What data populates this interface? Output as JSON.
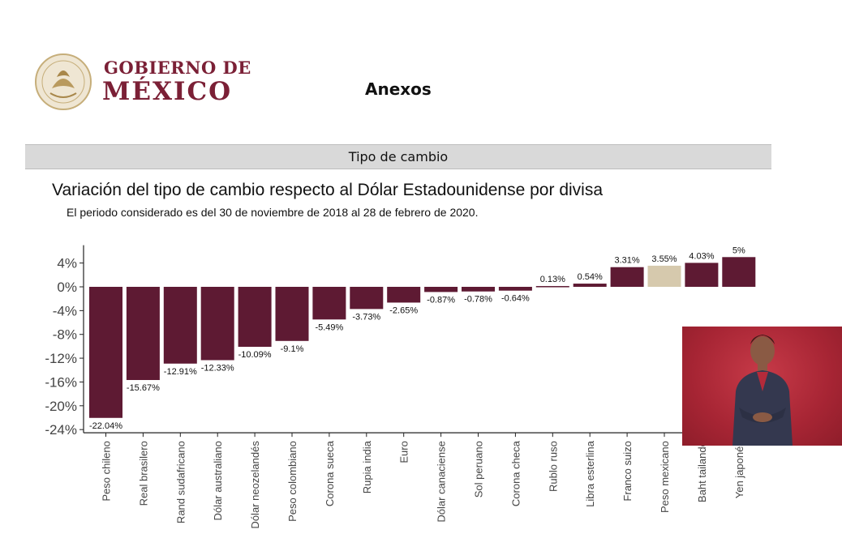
{
  "header": {
    "gov_line1": "GOBIERNO DE",
    "gov_line2": "MÉXICO",
    "page_heading": "Anexos"
  },
  "section": {
    "title": "Tipo de cambio"
  },
  "colors": {
    "bar": "#5e1a33",
    "highlight": "#d6c9ad",
    "brand": "#7b2036",
    "interpreter_bg": "#a72534"
  },
  "chart_data": {
    "type": "bar",
    "title": "Variación del tipo de cambio respecto al Dólar Estadounidense por divisa",
    "subtitle": "El periodo considerado es del 30 de noviembre de 2018 al 28 de febrero de 2020.",
    "categories": [
      "Peso chileno",
      "Real brasilero",
      "Rand sudafricano",
      "Dólar australiano",
      "Dólar neozelandés",
      "Peso colombiano",
      "Corona sueca",
      "Rupia india",
      "Euro",
      "Dólar canaciense",
      "Sol peruano",
      "Corona checa",
      "Rublo ruso",
      "Libra esterlina",
      "Franco suizo",
      "Peso mexicano",
      "Baht tailandé",
      "Yen japonés"
    ],
    "values": [
      -22.04,
      -15.67,
      -12.91,
      -12.33,
      -10.09,
      -9.1,
      -5.49,
      -3.73,
      -2.65,
      -0.87,
      -0.78,
      -0.64,
      0.13,
      0.54,
      3.31,
      3.55,
      4.03,
      5
    ],
    "data_labels": [
      "-22.04%",
      "-15.67%",
      "-12.91%",
      "-12.33%",
      "-10.09%",
      "-9.1%",
      "-5.49%",
      "-3.73%",
      "-2.65%",
      "-0.87%",
      "-0.78%",
      "-0.64%",
      "0.13%",
      "0.54%",
      "3.31%",
      "3.55%",
      "4.03%",
      "5%"
    ],
    "highlight_category": "Peso mexicano",
    "yticks": [
      "4%",
      "0%",
      "-4%",
      "-8%",
      "-12%",
      "-16%",
      "-20%",
      "-24%"
    ],
    "ytick_values": [
      4,
      0,
      -4,
      -8,
      -12,
      -16,
      -20,
      -24
    ],
    "ylim": [
      -24,
      7
    ],
    "xlabel": "",
    "ylabel": "",
    "grid": false,
    "legend": "none"
  },
  "interpreter": {
    "icon": "sign-language-interpreter"
  }
}
